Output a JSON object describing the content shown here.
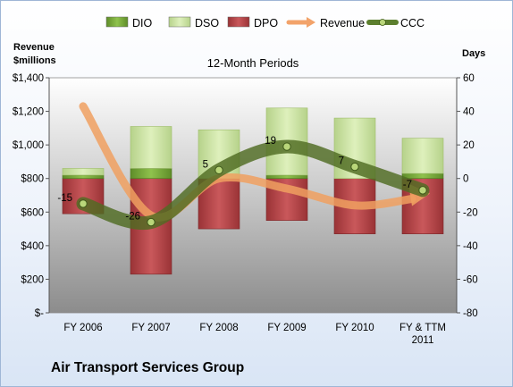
{
  "chart_data": {
    "type": "bar",
    "title": "12-Month Periods",
    "company": "Air Transport Services Group",
    "y_left_label": [
      "Revenue",
      "$millions"
    ],
    "y_right_label": "Days",
    "categories": [
      [
        "FY 2006"
      ],
      [
        "FY 2007"
      ],
      [
        "FY 2008"
      ],
      [
        "FY 2009"
      ],
      [
        "FY 2010"
      ],
      [
        "FY & TTM",
        "2011"
      ]
    ],
    "left_axis": {
      "min": 0,
      "max": 1400,
      "step": 200,
      "tick_labels": [
        "$-",
        "$200",
        "$400",
        "$600",
        "$800",
        "$1,000",
        "$1,200",
        "$1,400"
      ]
    },
    "right_axis": {
      "min": -80,
      "max": 60,
      "step": 20,
      "tick_labels": [
        "-80",
        "-60",
        "-40",
        "-20",
        "0",
        "20",
        "40",
        "60"
      ]
    },
    "legend": {
      "position": "top",
      "items": [
        {
          "name": "DIO",
          "kind": "bar",
          "color": "#7cab3c"
        },
        {
          "name": "DSO",
          "kind": "bar",
          "color": "#c8dfa0"
        },
        {
          "name": "DPO",
          "kind": "bar",
          "color": "#b5474a"
        },
        {
          "name": "Revenue",
          "kind": "arrow",
          "color": "#f2a36a"
        },
        {
          "name": "CCC",
          "kind": "line",
          "color": "#5c7f2e"
        }
      ]
    },
    "series": [
      {
        "name": "DIO",
        "unit": "days",
        "values": [
          2,
          6,
          0,
          2,
          0,
          3
        ]
      },
      {
        "name": "DSO",
        "unit": "days",
        "values": [
          4,
          25,
          29,
          40,
          36,
          21
        ]
      },
      {
        "name": "DPO",
        "unit": "days",
        "values": [
          21,
          57,
          30,
          25,
          33,
          33
        ]
      },
      {
        "name": "Revenue",
        "unit": "$millions",
        "values": [
          1230,
          580,
          800,
          740,
          640,
          700
        ]
      },
      {
        "name": "CCC",
        "unit": "days",
        "values": [
          -15,
          -26,
          5,
          19,
          7,
          -7
        ]
      }
    ],
    "ccc_labels": [
      "-15",
      "-26",
      "5",
      "19",
      "7",
      "-7"
    ],
    "colors": {
      "plot_top": "#ffffff",
      "plot_bottom": "#8a8a8a",
      "ccc_line": "#4f6b22"
    }
  }
}
